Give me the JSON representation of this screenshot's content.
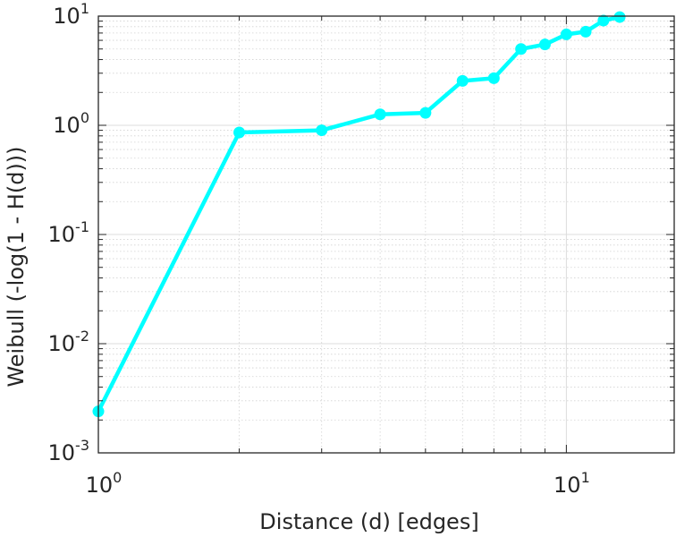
{
  "chart_data": {
    "type": "line",
    "xlabel": "Distance (d) [edges]",
    "ylabel": "Weibull (-log(1 - H(d)))",
    "xscale": "log",
    "yscale": "log",
    "xlim": [
      1,
      17
    ],
    "ylim": [
      0.001,
      10
    ],
    "grid": true,
    "legend": "none",
    "x_ticks": [
      {
        "base": "10",
        "exp": "0",
        "value": 1
      },
      {
        "base": "10",
        "exp": "1",
        "value": 10
      }
    ],
    "y_ticks": [
      {
        "base": "10",
        "exp": "-3",
        "value": 0.001
      },
      {
        "base": "10",
        "exp": "-2",
        "value": 0.01
      },
      {
        "base": "10",
        "exp": "-1",
        "value": 0.1
      },
      {
        "base": "10",
        "exp": "0",
        "value": 1
      },
      {
        "base": "10",
        "exp": "1",
        "value": 10
      }
    ],
    "series": [
      {
        "color": "#00FFFF",
        "x": [
          1,
          2,
          3,
          4,
          5,
          6,
          7,
          8,
          9,
          10,
          11,
          12,
          13
        ],
        "y": [
          0.0024,
          0.86,
          0.9,
          1.26,
          1.3,
          2.55,
          2.7,
          5.0,
          5.5,
          6.8,
          7.2,
          9.1,
          9.8
        ]
      }
    ]
  }
}
